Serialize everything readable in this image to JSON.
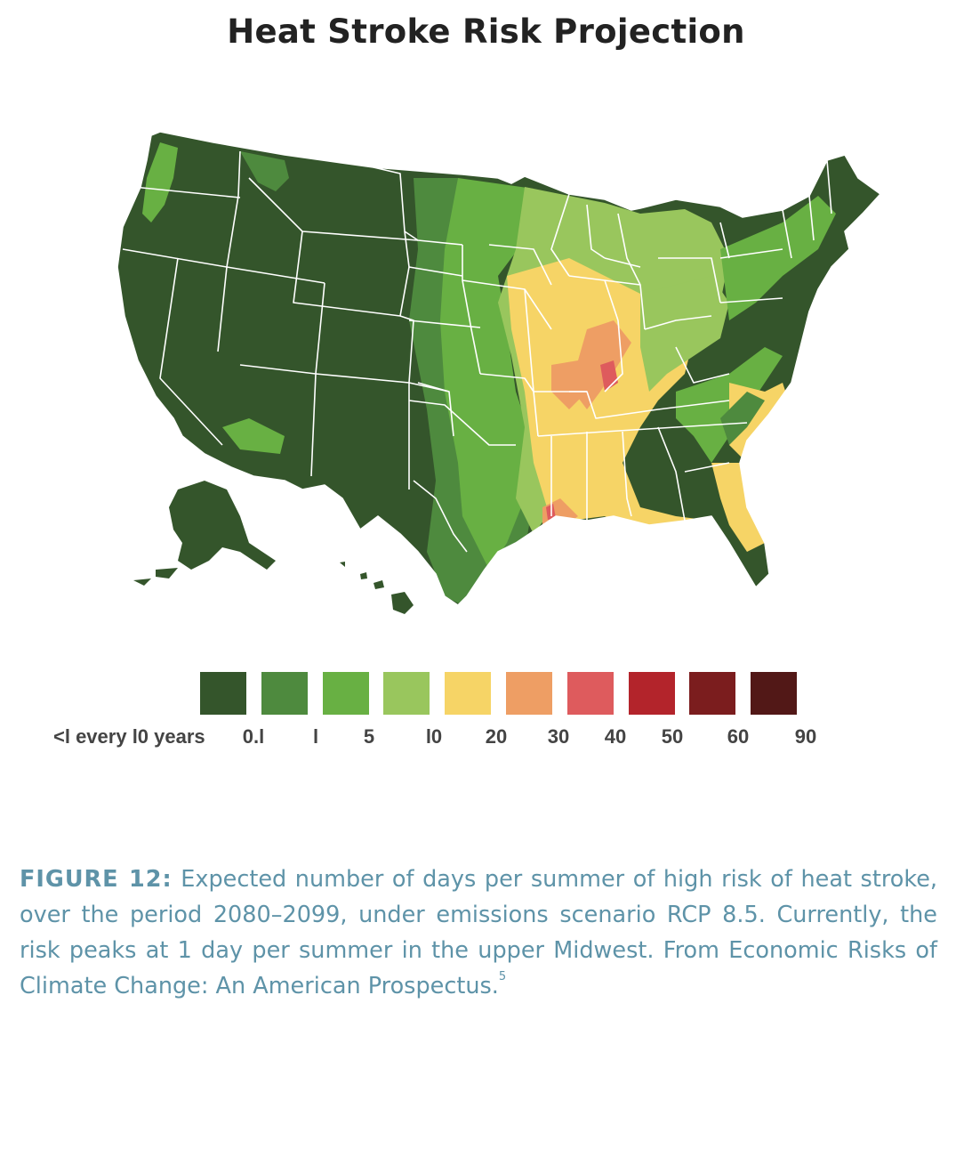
{
  "title": "Heat Stroke Risk Projection",
  "legend": {
    "first_label": "<l every l0 years",
    "labels": [
      "0.l",
      "l",
      "5",
      "l0",
      "20",
      "30",
      "40",
      "50",
      "60",
      "90"
    ],
    "colors": [
      "#34552b",
      "#4e8a3e",
      "#68b043",
      "#99c65d",
      "#f6d466",
      "#ee9e64",
      "#de5b5d",
      "#b3242b",
      "#7b1d1e",
      "#521817"
    ]
  },
  "caption": {
    "figure_label": "FIGURE 12:",
    "text": " Expected number of days per summer of high risk of heat stroke, over the period 2080–2099, under emissions scenario RCP 8.5. Currently, the risk peaks at 1 day per summer in the upper Midwest. From Economic Risks of Climate Change: An American Prospectus.",
    "footnote": "5"
  }
}
